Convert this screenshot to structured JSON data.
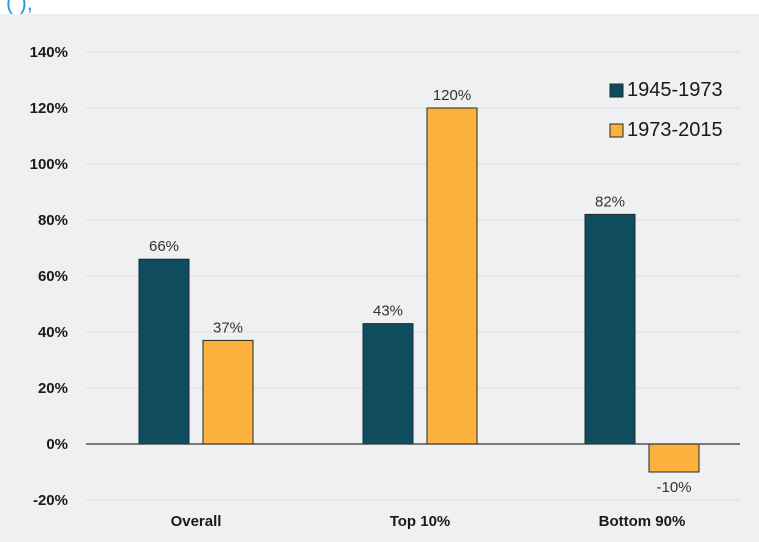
{
  "header": {
    "cut_title": "(                  ),"
  },
  "chart_data": {
    "type": "bar",
    "categories": [
      "Overall",
      "Top 10%",
      "Bottom 90%"
    ],
    "series": [
      {
        "name": "1945-1973",
        "values": [
          66,
          43,
          82
        ],
        "labels": [
          "66%",
          "43%",
          "82%"
        ],
        "color": "#0f4d5e"
      },
      {
        "name": "1973-2015",
        "values": [
          37,
          120,
          -10
        ],
        "labels": [
          "37%",
          "120%",
          "-10%"
        ],
        "color": "#fbb13c"
      }
    ],
    "yticks": [
      "-20%",
      "0%",
      "20%",
      "40%",
      "60%",
      "80%",
      "100%",
      "120%",
      "140%"
    ],
    "ytick_values": [
      -20,
      0,
      20,
      40,
      60,
      80,
      100,
      120,
      140
    ],
    "ylim": [
      -20,
      140
    ],
    "grid": true,
    "legend_position": "top-right",
    "gridline_color": "#d9dcde",
    "axis_color": "#333333"
  }
}
